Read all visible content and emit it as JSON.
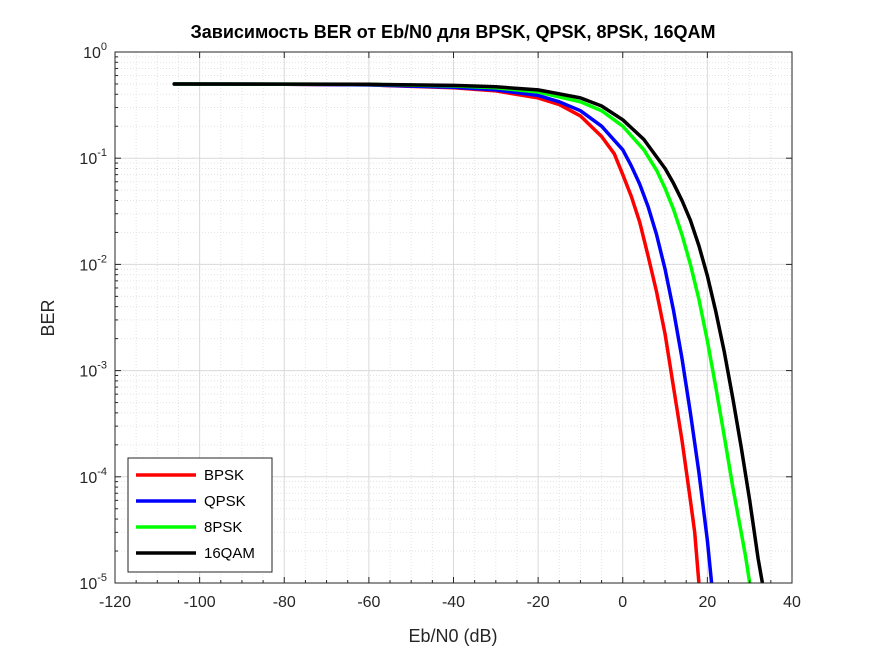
{
  "chart_data": {
    "type": "line",
    "title": "Зависимость BER от Eb/N0 для BPSK, QPSK, 8PSK, 16QAM",
    "xlabel": "Eb/N0 (dB)",
    "ylabel": "BER",
    "xlim": [
      -120,
      40
    ],
    "ylim": [
      1e-05,
      1
    ],
    "yscale": "log",
    "grid": true,
    "minor_grid": true,
    "legend_position": "bottom-left",
    "x_ticks": [
      "-120",
      "-100",
      "-80",
      "-60",
      "-40",
      "-20",
      "0",
      "20",
      "40"
    ],
    "y_ticks": [
      {
        "base": "10",
        "exp": "0"
      },
      {
        "base": "10",
        "exp": "-1"
      },
      {
        "base": "10",
        "exp": "-2"
      },
      {
        "base": "10",
        "exp": "-3"
      },
      {
        "base": "10",
        "exp": "-4"
      },
      {
        "base": "10",
        "exp": "-5"
      }
    ],
    "series": [
      {
        "name": "BPSK",
        "color": "#ff0000",
        "x": [
          -106,
          -80,
          -60,
          -40,
          -30,
          -20,
          -15,
          -10,
          -5,
          -2,
          0,
          2,
          4,
          6,
          8,
          10,
          12,
          14,
          16,
          17,
          18
        ],
        "y": [
          0.5,
          0.498,
          0.49,
          0.46,
          0.43,
          0.37,
          0.32,
          0.25,
          0.16,
          0.11,
          0.07,
          0.044,
          0.025,
          0.012,
          0.0055,
          0.0022,
          0.0007,
          0.00022,
          6e-05,
          3e-05,
          1e-05
        ]
      },
      {
        "name": "QPSK",
        "color": "#0000ff",
        "x": [
          -106,
          -80,
          -60,
          -40,
          -30,
          -20,
          -15,
          -10,
          -5,
          0,
          2,
          4,
          6,
          8,
          10,
          12,
          14,
          16,
          18,
          20,
          21
        ],
        "y": [
          0.5,
          0.498,
          0.49,
          0.465,
          0.44,
          0.39,
          0.34,
          0.28,
          0.2,
          0.12,
          0.085,
          0.057,
          0.035,
          0.019,
          0.009,
          0.0037,
          0.0013,
          0.0004,
          0.00011,
          2.5e-05,
          1e-05
        ]
      },
      {
        "name": "8PSK",
        "color": "#00ff00",
        "x": [
          -106,
          -80,
          -60,
          -40,
          -30,
          -20,
          -10,
          -5,
          0,
          5,
          8,
          10,
          12,
          14,
          16,
          18,
          20,
          22,
          24,
          26,
          28,
          29,
          30
        ],
        "y": [
          0.5,
          0.499,
          0.495,
          0.48,
          0.46,
          0.42,
          0.34,
          0.28,
          0.2,
          0.12,
          0.077,
          0.052,
          0.033,
          0.019,
          0.01,
          0.0047,
          0.0019,
          0.0007,
          0.00024,
          8e-05,
          3e-05,
          1.8e-05,
          1e-05
        ]
      },
      {
        "name": "16QAM",
        "color": "#000000",
        "x": [
          -106,
          -80,
          -60,
          -40,
          -30,
          -20,
          -10,
          -5,
          0,
          5,
          10,
          12,
          14,
          16,
          18,
          20,
          22,
          24,
          26,
          28,
          30,
          31,
          32,
          33
        ],
        "y": [
          0.5,
          0.499,
          0.496,
          0.485,
          0.47,
          0.44,
          0.37,
          0.31,
          0.23,
          0.15,
          0.08,
          0.058,
          0.04,
          0.026,
          0.015,
          0.0078,
          0.0036,
          0.0015,
          0.00055,
          0.00019,
          6e-05,
          3.2e-05,
          1.7e-05,
          1e-05
        ]
      }
    ]
  }
}
